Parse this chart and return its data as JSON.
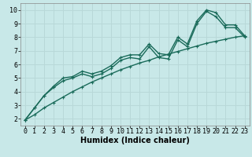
{
  "xlabel": "Humidex (Indice chaleur)",
  "ylabel": "",
  "bg_color": "#c8e8e8",
  "grid_color": "#b8d8d8",
  "line_color": "#1a6b5a",
  "xlim": [
    -0.5,
    23.5
  ],
  "ylim": [
    1.5,
    10.5
  ],
  "xticks": [
    0,
    1,
    2,
    3,
    4,
    5,
    6,
    7,
    8,
    9,
    10,
    11,
    12,
    13,
    14,
    15,
    16,
    17,
    18,
    19,
    20,
    21,
    22,
    23
  ],
  "yticks": [
    2,
    3,
    4,
    5,
    6,
    7,
    8,
    9,
    10
  ],
  "line1_x": [
    0,
    1,
    2,
    3,
    4,
    5,
    6,
    7,
    8,
    9,
    10,
    11,
    12,
    13,
    14,
    15,
    16,
    17,
    18,
    19,
    20,
    21,
    22,
    23
  ],
  "line1_y": [
    1.9,
    2.8,
    3.7,
    4.4,
    5.0,
    5.1,
    5.5,
    5.3,
    5.5,
    5.9,
    6.5,
    6.7,
    6.7,
    7.5,
    6.8,
    6.7,
    8.0,
    7.5,
    9.2,
    10.0,
    9.8,
    8.9,
    8.9,
    8.1
  ],
  "line2_x": [
    0,
    1,
    2,
    3,
    4,
    5,
    6,
    7,
    8,
    9,
    10,
    11,
    12,
    13,
    14,
    15,
    16,
    17,
    18,
    19,
    20,
    21,
    22,
    23
  ],
  "line2_y": [
    1.9,
    2.8,
    3.7,
    4.3,
    4.8,
    5.0,
    5.3,
    5.1,
    5.3,
    5.7,
    6.3,
    6.5,
    6.4,
    7.3,
    6.5,
    6.4,
    7.8,
    7.3,
    9.0,
    9.9,
    9.5,
    8.7,
    8.7,
    8.0
  ],
  "line3_x": [
    0,
    1,
    2,
    3,
    4,
    5,
    6,
    7,
    8,
    9,
    10,
    11,
    12,
    13,
    14,
    15,
    16,
    17,
    18,
    19,
    20,
    21,
    22,
    23
  ],
  "line3_y": [
    1.9,
    2.3,
    2.8,
    3.2,
    3.6,
    4.0,
    4.35,
    4.7,
    5.0,
    5.3,
    5.6,
    5.85,
    6.1,
    6.3,
    6.55,
    6.75,
    6.95,
    7.15,
    7.35,
    7.55,
    7.7,
    7.85,
    8.0,
    8.1
  ],
  "marker_size": 3.0,
  "line_width": 1.0,
  "font_size_label": 7,
  "font_size_tick": 6
}
